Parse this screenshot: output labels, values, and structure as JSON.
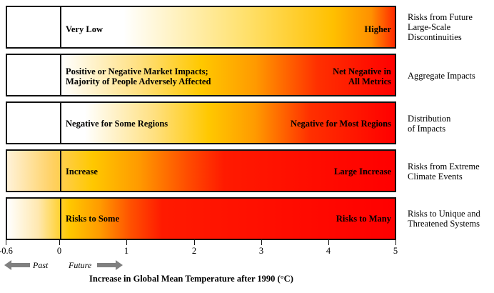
{
  "rows": [
    {
      "left": "Very Low",
      "right": "Higher",
      "label": "Risks from Future\nLarge-Scale\nDiscontinuities"
    },
    {
      "left": "Positive or Negative Market Impacts;\nMajority of People Adversely Affected",
      "right": "Net Negative in\nAll Metrics",
      "label": "Aggregate Impacts"
    },
    {
      "left": "Negative for Some Regions",
      "right": "Negative for Most Regions",
      "label": "Distribution\nof Impacts"
    },
    {
      "left": "Increase",
      "right": "Large Increase",
      "label": "Risks from Extreme\nClimate Events"
    },
    {
      "left": "Risks to Some",
      "right": "Risks to Many",
      "label": "Risks to Unique and\nThreatened Systems"
    }
  ],
  "axis": {
    "ticks": [
      "-0.6",
      "0",
      "1",
      "2",
      "3",
      "4",
      "5"
    ],
    "past_label": "Past",
    "future_label": "Future",
    "title": "Increase in Global Mean Temperature after 1990 (°C)"
  },
  "colors": {
    "white": "#ffffff",
    "yellow": "#ffc800",
    "orange": "#ff8000",
    "red": "#ff0000"
  }
}
